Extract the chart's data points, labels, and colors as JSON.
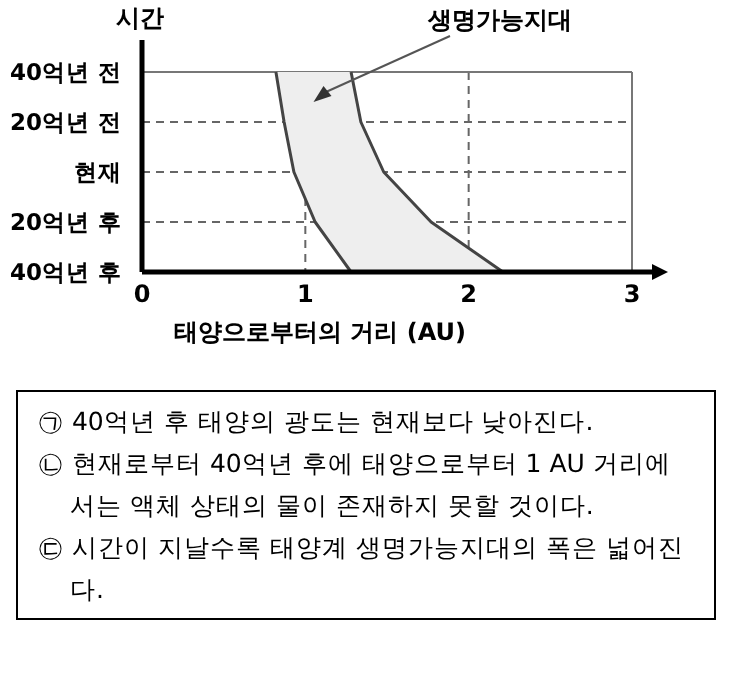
{
  "chart_data": {
    "type": "line",
    "orientation": "horizontal",
    "ylabel": "시간",
    "xlabel": "태양으로부터의 거리 (AU)",
    "categories": [
      "40억년 전",
      "20억년 전",
      "현재",
      "20억년 후",
      "40억년 후"
    ],
    "series": [
      {
        "color": "#444444",
        "values": [
          0.82,
          0.87,
          0.93,
          1.06,
          1.28
        ]
      },
      {
        "color": "#444444",
        "values": [
          1.28,
          1.34,
          1.48,
          1.77,
          2.21
        ]
      }
    ],
    "xlim": [
      0,
      3
    ],
    "xticks": [
      0,
      1,
      2,
      3
    ],
    "grid": true,
    "annotations": [
      "생명가능지대",
      "㉠ 40억년 후 태양의 광도는 현재보다 낮아진다.",
      "㉡ 현재로부터 40억년 후에 태양으로부터 1 AU 거리에서는 액체 상태의 물이 존재하지 못할 것이다.",
      "㉢ 시간이 지날수록 태양계 생명가능지대의 폭은 넓어진다."
    ]
  }
}
